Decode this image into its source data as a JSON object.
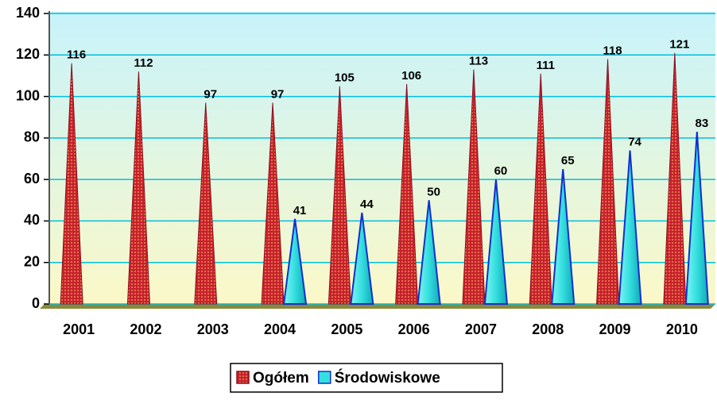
{
  "chart_data": {
    "type": "cone-bar",
    "categories": [
      "2001",
      "2002",
      "2003",
      "2004",
      "2005",
      "2006",
      "2007",
      "2008",
      "2009",
      "2010"
    ],
    "series": [
      {
        "name": "Ogółem",
        "color": "#cc1f2a",
        "values": [
          116,
          112,
          97,
          97,
          105,
          106,
          113,
          111,
          118,
          121
        ]
      },
      {
        "name": "Środowiskowe",
        "color": "#33e0e0",
        "values": [
          null,
          null,
          null,
          41,
          44,
          50,
          60,
          65,
          74,
          83
        ]
      }
    ],
    "ylim": [
      0,
      140
    ],
    "yticks": [
      0,
      20,
      40,
      60,
      80,
      100,
      120,
      140
    ],
    "grid": true,
    "legend": "bottom"
  }
}
